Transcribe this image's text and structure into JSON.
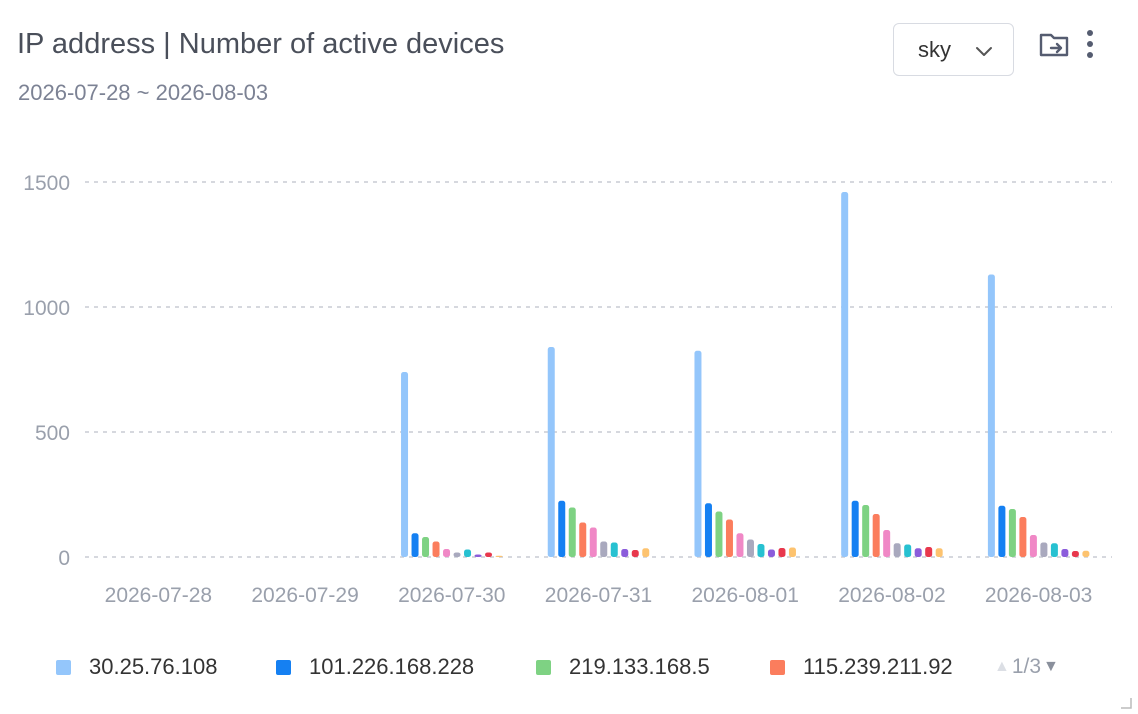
{
  "header": {
    "title": "IP address | Number of active devices",
    "date_range": "2026-07-28 ~ 2026-08-03"
  },
  "selector": {
    "value": "sky"
  },
  "icons": {
    "export": "folder-export-icon",
    "more": "more-vertical-icon",
    "dropdown": "chevron-down-icon"
  },
  "legend": {
    "items": [
      {
        "label": "30.25.76.108",
        "color": "#94c6fb"
      },
      {
        "label": "101.226.168.228",
        "color": "#1580f2"
      },
      {
        "label": "219.133.168.5",
        "color": "#7ed283"
      },
      {
        "label": "115.239.211.92",
        "color": "#fb7d5d"
      }
    ],
    "pager": "1/3"
  },
  "chart_data": {
    "type": "bar",
    "categories": [
      "2026-07-28",
      "2026-07-29",
      "2026-07-30",
      "2026-07-31",
      "2026-08-01",
      "2026-08-02",
      "2026-08-03"
    ],
    "ylim": [
      0,
      1500
    ],
    "yticks": [
      "0",
      "500",
      "1000",
      "1500"
    ],
    "grid": true,
    "legend_position": "bottom",
    "series_colors": [
      "#94c6fb",
      "#1580f2",
      "#7ed283",
      "#fb7d5d",
      "#f088c6",
      "#a9a9be",
      "#27c1d1",
      "#8b5cdb",
      "#e8384d",
      "#fdc36f"
    ],
    "series": [
      {
        "name": "30.25.76.108",
        "values": [
          0,
          0,
          740,
          840,
          825,
          1460,
          1130
        ]
      },
      {
        "name": "101.226.168.228",
        "values": [
          0,
          0,
          95,
          225,
          215,
          225,
          205
        ]
      },
      {
        "name": "219.133.168.5",
        "values": [
          0,
          0,
          80,
          198,
          182,
          208,
          192
        ]
      },
      {
        "name": "115.239.211.92",
        "values": [
          0,
          0,
          62,
          138,
          150,
          172,
          160
        ]
      },
      {
        "values": [
          0,
          0,
          32,
          118,
          95,
          108,
          88
        ]
      },
      {
        "values": [
          0,
          0,
          18,
          62,
          70,
          55,
          58
        ]
      },
      {
        "values": [
          0,
          0,
          30,
          58,
          52,
          50,
          55
        ]
      },
      {
        "values": [
          0,
          0,
          10,
          32,
          30,
          35,
          32
        ]
      },
      {
        "values": [
          0,
          0,
          18,
          28,
          36,
          40,
          24
        ]
      },
      {
        "values": [
          0,
          0,
          5,
          35,
          38,
          35,
          25
        ]
      }
    ]
  }
}
